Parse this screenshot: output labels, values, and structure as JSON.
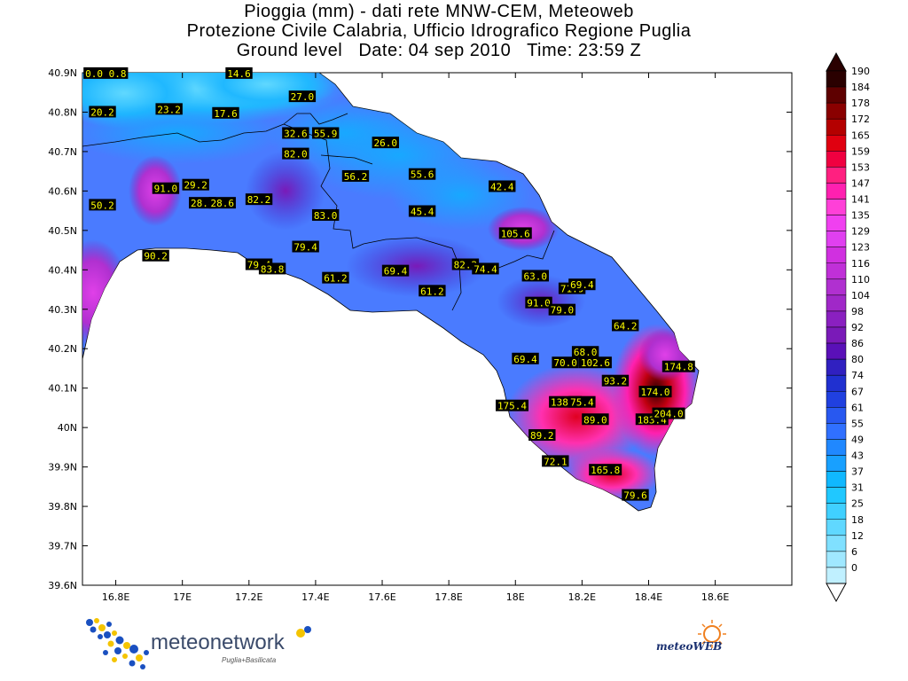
{
  "title": {
    "line1": "Pioggia (mm) - dati rete MNW-CEM, Meteoweb",
    "line2": "Protezione Civile Calabria, Ufficio Idrografico Regione Puglia",
    "line3": "Ground level   Date: 04 sep 2010   Time: 23:59 Z"
  },
  "map": {
    "lat_labels": [
      "40.9N",
      "40.8N",
      "40.7N",
      "40.6N",
      "40.5N",
      "40.4N",
      "40.3N",
      "40.2N",
      "40.1N",
      "40N",
      "39.9N",
      "39.8N",
      "39.7N",
      "39.6N"
    ],
    "lon_labels": [
      "16.8E",
      "17E",
      "17.2E",
      "17.4E",
      "17.6E",
      "17.8E",
      "18E",
      "18.2E",
      "18.4E",
      "18.6E"
    ],
    "lat_range": [
      39.6,
      40.9
    ],
    "lon_range": [
      16.7,
      18.83
    ],
    "land_color": "#4a7bff",
    "sea_color": "#ffffff",
    "stations": [
      {
        "lon": 16.77,
        "lat": 40.898,
        "value": "0.0 0.8"
      },
      {
        "lon": 17.17,
        "lat": 40.898,
        "value": "14.6"
      },
      {
        "lon": 16.76,
        "lat": 40.8,
        "value": "20.2"
      },
      {
        "lon": 16.96,
        "lat": 40.807,
        "value": "23.2"
      },
      {
        "lon": 17.13,
        "lat": 40.797,
        "value": "17.6"
      },
      {
        "lon": 17.36,
        "lat": 40.839,
        "value": "27.0"
      },
      {
        "lon": 17.34,
        "lat": 40.746,
        "value": "32.6"
      },
      {
        "lon": 17.43,
        "lat": 40.746,
        "value": "55.9"
      },
      {
        "lon": 17.61,
        "lat": 40.722,
        "value": "26.0"
      },
      {
        "lon": 17.34,
        "lat": 40.694,
        "value": "82.0"
      },
      {
        "lon": 17.52,
        "lat": 40.637,
        "value": "56.2"
      },
      {
        "lon": 17.72,
        "lat": 40.642,
        "value": "55.6"
      },
      {
        "lon": 17.96,
        "lat": 40.611,
        "value": "42.4"
      },
      {
        "lon": 16.95,
        "lat": 40.606,
        "value": "91.0"
      },
      {
        "lon": 17.04,
        "lat": 40.615,
        "value": "29.2"
      },
      {
        "lon": 17.06,
        "lat": 40.569,
        "value": "28.8"
      },
      {
        "lon": 17.12,
        "lat": 40.569,
        "value": "28.6"
      },
      {
        "lon": 17.23,
        "lat": 40.578,
        "value": "82.2"
      },
      {
        "lon": 16.76,
        "lat": 40.564,
        "value": "50.2"
      },
      {
        "lon": 17.43,
        "lat": 40.538,
        "value": "83.0"
      },
      {
        "lon": 17.72,
        "lat": 40.548,
        "value": "45.4"
      },
      {
        "lon": 18.0,
        "lat": 40.492,
        "value": "105.6"
      },
      {
        "lon": 17.37,
        "lat": 40.458,
        "value": "79.4"
      },
      {
        "lon": 16.92,
        "lat": 40.435,
        "value": "90.2"
      },
      {
        "lon": 17.23,
        "lat": 40.413,
        "value": "79.4"
      },
      {
        "lon": 17.27,
        "lat": 40.402,
        "value": "83.8"
      },
      {
        "lon": 17.64,
        "lat": 40.397,
        "value": "69.4"
      },
      {
        "lon": 17.85,
        "lat": 40.413,
        "value": "82.2"
      },
      {
        "lon": 17.91,
        "lat": 40.402,
        "value": "74.4"
      },
      {
        "lon": 18.06,
        "lat": 40.384,
        "value": "63.0"
      },
      {
        "lon": 17.46,
        "lat": 40.379,
        "value": "61.2"
      },
      {
        "lon": 17.75,
        "lat": 40.346,
        "value": "61.2"
      },
      {
        "lon": 18.17,
        "lat": 40.352,
        "value": "71.9"
      },
      {
        "lon": 18.2,
        "lat": 40.362,
        "value": "69.4"
      },
      {
        "lon": 18.07,
        "lat": 40.316,
        "value": "91.0"
      },
      {
        "lon": 18.14,
        "lat": 40.298,
        "value": "79.0"
      },
      {
        "lon": 18.33,
        "lat": 40.258,
        "value": "64.2"
      },
      {
        "lon": 18.21,
        "lat": 40.191,
        "value": "68.0"
      },
      {
        "lon": 18.03,
        "lat": 40.174,
        "value": "69.4"
      },
      {
        "lon": 18.15,
        "lat": 40.164,
        "value": "70.0"
      },
      {
        "lon": 18.24,
        "lat": 40.164,
        "value": "102.6"
      },
      {
        "lon": 18.49,
        "lat": 40.154,
        "value": "174.8"
      },
      {
        "lon": 18.3,
        "lat": 40.118,
        "value": "93.2"
      },
      {
        "lon": 18.42,
        "lat": 40.09,
        "value": "174.0"
      },
      {
        "lon": 18.15,
        "lat": 40.064,
        "value": "138.1"
      },
      {
        "lon": 18.2,
        "lat": 40.064,
        "value": "75.4"
      },
      {
        "lon": 17.99,
        "lat": 40.055,
        "value": "175.4"
      },
      {
        "lon": 18.24,
        "lat": 40.02,
        "value": "89.0"
      },
      {
        "lon": 18.41,
        "lat": 40.02,
        "value": "183.4"
      },
      {
        "lon": 18.46,
        "lat": 40.035,
        "value": "204.0"
      },
      {
        "lon": 18.08,
        "lat": 39.98,
        "value": "89.2"
      },
      {
        "lon": 18.12,
        "lat": 39.914,
        "value": "72.1"
      },
      {
        "lon": 18.27,
        "lat": 39.892,
        "value": "165.8"
      },
      {
        "lon": 18.36,
        "lat": 39.828,
        "value": "79.6"
      }
    ]
  },
  "colorbar": {
    "labels": [
      "190",
      "184",
      "178",
      "172",
      "165",
      "159",
      "153",
      "147",
      "141",
      "135",
      "129",
      "123",
      "116",
      "110",
      "104",
      "98",
      "92",
      "86",
      "80",
      "74",
      "67",
      "61",
      "55",
      "49",
      "43",
      "37",
      "31",
      "25",
      "18",
      "12",
      "6",
      "0"
    ],
    "colors": [
      "#2a0000",
      "#5e0000",
      "#8a0000",
      "#b40000",
      "#e00010",
      "#f00040",
      "#ff2080",
      "#ff20b0",
      "#ff40d8",
      "#f040f0",
      "#e040f0",
      "#d030e0",
      "#c030d8",
      "#b030d0",
      "#a028c8",
      "#8a20c0",
      "#7a1ab8",
      "#5a10b8",
      "#3020c0",
      "#2030d0",
      "#2040e0",
      "#2858f0",
      "#3070ff",
      "#2088ff",
      "#18a0ff",
      "#10b8ff",
      "#20c8ff",
      "#40d0ff",
      "#60d8ff",
      "#80e0ff",
      "#a0e8ff",
      "#c0f0ff"
    ]
  },
  "logos": {
    "left_name": "meteonetwork",
    "left_sub": "Puglia+Basilicata",
    "right_name": "meteoWEB"
  }
}
